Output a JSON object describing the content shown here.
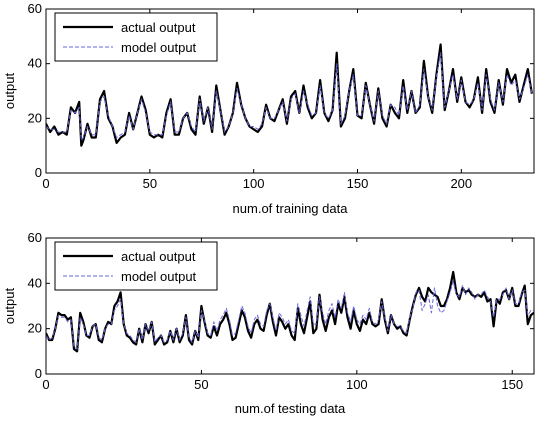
{
  "chart_data": [
    {
      "type": "line",
      "xlabel": "num.of training data",
      "ylabel": "output",
      "xlim": [
        0,
        235
      ],
      "ylim": [
        0,
        60
      ],
      "xticks": [
        0,
        50,
        100,
        150,
        200
      ],
      "yticks": [
        0,
        20,
        40,
        60
      ],
      "grid": false,
      "legend_position": "top-left",
      "x": [
        0,
        2,
        4,
        6,
        8,
        10,
        12,
        14,
        16,
        17,
        18,
        20,
        22,
        24,
        26,
        28,
        30,
        32,
        34,
        36,
        38,
        40,
        42,
        44,
        46,
        48,
        50,
        52,
        54,
        56,
        58,
        60,
        62,
        64,
        66,
        68,
        70,
        72,
        74,
        76,
        78,
        80,
        82,
        84,
        86,
        88,
        90,
        92,
        94,
        96,
        98,
        100,
        102,
        104,
        106,
        108,
        110,
        112,
        114,
        116,
        118,
        120,
        122,
        124,
        126,
        128,
        130,
        132,
        134,
        136,
        138,
        140,
        142,
        144,
        146,
        148,
        150,
        152,
        154,
        156,
        158,
        160,
        162,
        164,
        166,
        168,
        170,
        172,
        174,
        176,
        178,
        180,
        182,
        184,
        186,
        188,
        190,
        192,
        194,
        196,
        198,
        200,
        202,
        204,
        206,
        208,
        210,
        212,
        214,
        216,
        218,
        220,
        222,
        224,
        226,
        228,
        230,
        232,
        234
      ],
      "series": [
        {
          "name": "actual output",
          "color": "#000000",
          "values": [
            18,
            15,
            17,
            14,
            15,
            14,
            24,
            22,
            26,
            10,
            12,
            18,
            13,
            13,
            27,
            30,
            20,
            17,
            11,
            13,
            14,
            22,
            16,
            22,
            28,
            23,
            14,
            13,
            14,
            13,
            22,
            27,
            14,
            14,
            20,
            22,
            16,
            14,
            28,
            18,
            24,
            15,
            32,
            23,
            14,
            17,
            22,
            33,
            25,
            20,
            17,
            16,
            15,
            17,
            25,
            20,
            19,
            23,
            27,
            18,
            28,
            30,
            22,
            32,
            24,
            20,
            22,
            34,
            22,
            19,
            23,
            44,
            17,
            20,
            30,
            38,
            21,
            20,
            33,
            25,
            18,
            31,
            20,
            17,
            25,
            22,
            20,
            34,
            22,
            30,
            22,
            24,
            41,
            28,
            22,
            36,
            47,
            23,
            30,
            38,
            26,
            35,
            26,
            24,
            27,
            35,
            22,
            38,
            26,
            22,
            34,
            25,
            38,
            33,
            36,
            26,
            32,
            38,
            29
          ],
          "style": "solid"
        },
        {
          "name": "model output",
          "color": "#6666dd",
          "values": [
            17,
            16,
            16,
            15,
            15,
            15,
            23,
            22,
            24,
            12,
            13,
            17,
            14,
            14,
            26,
            28,
            21,
            17,
            13,
            14,
            15,
            21,
            16,
            22,
            27,
            22,
            15,
            14,
            14,
            14,
            21,
            26,
            15,
            15,
            20,
            22,
            17,
            15,
            27,
            19,
            24,
            16,
            30,
            23,
            15,
            17,
            22,
            31,
            25,
            20,
            17,
            17,
            16,
            18,
            24,
            20,
            20,
            23,
            26,
            19,
            27,
            29,
            22,
            30,
            25,
            21,
            22,
            32,
            22,
            20,
            23,
            40,
            18,
            21,
            30,
            36,
            21,
            21,
            32,
            25,
            19,
            30,
            21,
            18,
            25,
            24,
            21,
            32,
            23,
            30,
            22,
            25,
            38,
            28,
            23,
            35,
            44,
            24,
            30,
            36,
            27,
            34,
            26,
            25,
            27,
            33,
            23,
            36,
            27,
            23,
            33,
            26,
            36,
            32,
            34,
            27,
            31,
            36,
            29
          ],
          "style": "dashed"
        }
      ]
    },
    {
      "type": "line",
      "xlabel": "num.of testing data",
      "ylabel": "output",
      "xlim": [
        0,
        157
      ],
      "ylim": [
        0,
        60
      ],
      "xticks": [
        0,
        50,
        100,
        150
      ],
      "yticks": [
        0,
        20,
        40,
        60
      ],
      "grid": false,
      "legend_position": "top-left",
      "x": [
        0,
        1,
        2,
        3,
        4,
        5,
        6,
        7,
        8,
        9,
        10,
        11,
        12,
        13,
        14,
        15,
        16,
        17,
        18,
        19,
        20,
        21,
        22,
        23,
        24,
        25,
        26,
        27,
        28,
        29,
        30,
        31,
        32,
        33,
        34,
        35,
        36,
        37,
        38,
        39,
        40,
        41,
        42,
        43,
        44,
        45,
        46,
        47,
        48,
        49,
        50,
        51,
        52,
        53,
        54,
        55,
        56,
        57,
        58,
        59,
        60,
        61,
        62,
        63,
        64,
        65,
        66,
        67,
        68,
        69,
        70,
        71,
        72,
        73,
        74,
        75,
        76,
        77,
        78,
        79,
        80,
        81,
        82,
        83,
        84,
        85,
        86,
        87,
        88,
        89,
        90,
        91,
        92,
        93,
        94,
        95,
        96,
        97,
        98,
        99,
        100,
        101,
        102,
        103,
        104,
        105,
        106,
        107,
        108,
        109,
        110,
        111,
        112,
        113,
        114,
        115,
        116,
        117,
        118,
        119,
        120,
        121,
        122,
        123,
        124,
        125,
        126,
        127,
        128,
        129,
        130,
        131,
        132,
        133,
        134,
        135,
        136,
        137,
        138,
        139,
        140,
        141,
        142,
        143,
        144,
        145,
        146,
        147,
        148,
        149,
        150,
        151,
        152,
        153,
        154,
        155,
        156,
        157
      ],
      "series": [
        {
          "name": "actual output",
          "color": "#000000",
          "values": [
            18,
            15,
            15,
            20,
            27,
            26,
            26,
            24,
            25,
            11,
            10,
            27,
            23,
            17,
            16,
            21,
            22,
            15,
            14,
            20,
            23,
            22,
            30,
            32,
            36,
            22,
            17,
            16,
            14,
            13,
            20,
            14,
            22,
            18,
            23,
            13,
            15,
            17,
            13,
            14,
            19,
            14,
            20,
            14,
            17,
            26,
            15,
            13,
            19,
            15,
            30,
            23,
            17,
            16,
            21,
            17,
            22,
            24,
            27,
            22,
            15,
            16,
            22,
            28,
            25,
            19,
            16,
            22,
            24,
            20,
            19,
            26,
            31,
            23,
            17,
            25,
            23,
            20,
            22,
            17,
            15,
            29,
            22,
            18,
            25,
            32,
            18,
            20,
            35,
            24,
            19,
            25,
            28,
            22,
            31,
            27,
            34,
            25,
            20,
            28,
            22,
            19,
            24,
            22,
            27,
            22,
            21,
            22,
            33,
            24,
            18,
            26,
            22,
            20,
            21,
            18,
            17,
            24,
            30,
            35,
            38,
            34,
            32,
            38,
            36,
            35,
            34,
            30,
            30,
            33,
            38,
            45,
            36,
            33,
            38,
            36,
            37,
            35,
            34,
            35,
            34,
            36,
            32,
            33,
            21,
            33,
            31,
            36,
            37,
            33,
            38,
            30,
            30,
            35,
            39,
            22,
            26,
            27
          ],
          "style": "solid"
        },
        {
          "name": "model output",
          "color": "#6666dd",
          "values": [
            17,
            15,
            16,
            20,
            26,
            25,
            25,
            23,
            24,
            12,
            11,
            25,
            22,
            17,
            17,
            21,
            22,
            16,
            15,
            20,
            22,
            22,
            28,
            30,
            33,
            22,
            18,
            17,
            15,
            14,
            20,
            15,
            22,
            19,
            23,
            14,
            16,
            17,
            14,
            15,
            19,
            15,
            20,
            15,
            18,
            25,
            16,
            14,
            19,
            16,
            28,
            24,
            18,
            17,
            23,
            19,
            24,
            26,
            29,
            24,
            17,
            18,
            24,
            30,
            27,
            21,
            18,
            24,
            26,
            22,
            21,
            28,
            31,
            25,
            19,
            27,
            25,
            22,
            24,
            19,
            18,
            31,
            26,
            21,
            28,
            34,
            22,
            22,
            34,
            27,
            22,
            28,
            31,
            25,
            33,
            29,
            36,
            27,
            23,
            30,
            24,
            22,
            26,
            24,
            29,
            23,
            22,
            24,
            32,
            25,
            19,
            26,
            22,
            21,
            21,
            19,
            18,
            25,
            29,
            36,
            37,
            28,
            31,
            35,
            27,
            38,
            30,
            27,
            28,
            32,
            36,
            41,
            35,
            34,
            39,
            35,
            38,
            36,
            33,
            35,
            35,
            37,
            34,
            32,
            25,
            33,
            33,
            35,
            38,
            33,
            37,
            31,
            31,
            36,
            37,
            26,
            28,
            28
          ],
          "style": "dashed"
        }
      ]
    }
  ]
}
